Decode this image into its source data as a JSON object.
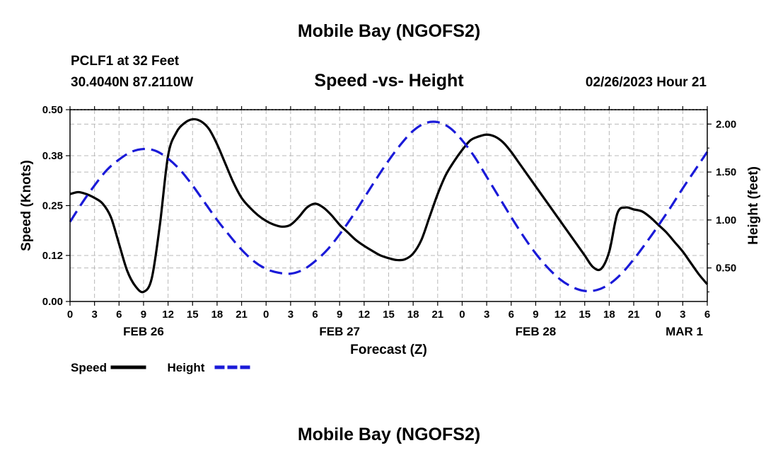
{
  "header": {
    "title": "Mobile Bay (NGOFS2)",
    "station": "PCLF1 at 32 Feet",
    "coords": "30.4040N  87.2110W",
    "chart_title": "Speed -vs- Height",
    "datetime": "02/26/2023 Hour 21"
  },
  "footer": {
    "title": "Mobile Bay (NGOFS2)"
  },
  "chart_data": {
    "type": "line",
    "title": "Speed -vs- Height",
    "xlabel": "Forecast (Z)",
    "ylabel": "Speed (Knots)",
    "y2label": "Height (feet)",
    "xlim": [
      0,
      78
    ],
    "ylim": [
      0,
      0.5
    ],
    "y2lim": [
      0.15,
      2.15
    ],
    "grid": true,
    "x_tick_values": [
      0,
      3,
      6,
      9,
      12,
      15,
      18,
      21,
      24,
      27,
      30,
      33,
      36,
      39,
      42,
      45,
      48,
      51,
      54,
      57,
      60,
      63,
      66,
      69,
      72,
      75,
      78
    ],
    "x_tick_labels": [
      "0",
      "3",
      "6",
      "9",
      "12",
      "15",
      "18",
      "21",
      "0",
      "3",
      "6",
      "9",
      "12",
      "15",
      "18",
      "21",
      "0",
      "3",
      "6",
      "9",
      "12",
      "15",
      "18",
      "21",
      "0",
      "3",
      "6"
    ],
    "y_ticks": [
      0.0,
      0.12,
      0.25,
      0.38,
      0.5
    ],
    "y_tick_labels": [
      "0.00",
      "0.12",
      "0.25",
      "0.38",
      "0.50"
    ],
    "y2_ticks": [
      0.5,
      1.0,
      1.5,
      2.0
    ],
    "y2_tick_labels": [
      "0.50",
      "1.00",
      "1.50",
      "2.00"
    ],
    "date_labels": [
      {
        "x": 9,
        "label": "FEB 26"
      },
      {
        "x": 33,
        "label": "FEB 27"
      },
      {
        "x": 57,
        "label": "FEB 28"
      },
      {
        "x": 78,
        "label": "MAR 1"
      }
    ],
    "series": [
      {
        "name": "Speed",
        "axis": "left",
        "color": "#000000",
        "dash": "solid",
        "x": [
          0,
          1,
          2,
          3,
          4,
          5,
          6,
          7,
          8,
          9,
          10,
          11,
          12,
          13,
          14,
          15,
          16,
          17,
          18,
          19,
          20,
          21,
          22,
          23,
          24,
          25,
          26,
          27,
          28,
          29,
          30,
          31,
          32,
          33,
          34,
          35,
          36,
          37,
          38,
          39,
          40,
          41,
          42,
          43,
          44,
          45,
          46,
          47,
          48,
          49,
          50,
          51,
          52,
          53,
          54,
          55,
          56,
          57,
          58,
          59,
          60,
          61,
          62,
          63,
          64,
          65,
          66,
          67,
          68,
          69,
          70,
          71,
          72,
          73,
          74,
          75,
          76,
          77,
          78
        ],
        "values": [
          0.28,
          0.285,
          0.28,
          0.27,
          0.255,
          0.22,
          0.15,
          0.08,
          0.04,
          0.025,
          0.06,
          0.2,
          0.38,
          0.44,
          0.465,
          0.475,
          0.47,
          0.45,
          0.41,
          0.36,
          0.31,
          0.27,
          0.245,
          0.225,
          0.21,
          0.2,
          0.195,
          0.2,
          0.22,
          0.245,
          0.255,
          0.245,
          0.225,
          0.2,
          0.18,
          0.16,
          0.145,
          0.132,
          0.12,
          0.113,
          0.108,
          0.11,
          0.125,
          0.16,
          0.22,
          0.28,
          0.33,
          0.365,
          0.395,
          0.42,
          0.43,
          0.435,
          0.43,
          0.415,
          0.39,
          0.36,
          0.33,
          0.3,
          0.27,
          0.24,
          0.21,
          0.18,
          0.15,
          0.12,
          0.09,
          0.085,
          0.13,
          0.23,
          0.245,
          0.24,
          0.235,
          0.22,
          0.2,
          0.18,
          0.155,
          0.13,
          0.1,
          0.07,
          0.045
        ]
      },
      {
        "name": "Height",
        "axis": "right",
        "color": "#1a1ad8",
        "dash": "dashed",
        "x": [
          0,
          1.5,
          3,
          4.5,
          6,
          7.5,
          9,
          10.5,
          12,
          13.5,
          15,
          16.5,
          18,
          19.5,
          21,
          22.5,
          24,
          25.5,
          27,
          28.5,
          30,
          31.5,
          33,
          34.5,
          36,
          37.5,
          39,
          40.5,
          42,
          43.5,
          45,
          46.5,
          48,
          49.5,
          51,
          52.5,
          54,
          55.5,
          57,
          58.5,
          60,
          61.5,
          63,
          64.5,
          66,
          67.5,
          69,
          70.5,
          72,
          73.5,
          75,
          76.5,
          78
        ],
        "values": [
          0.98,
          1.18,
          1.36,
          1.52,
          1.63,
          1.71,
          1.74,
          1.72,
          1.64,
          1.52,
          1.36,
          1.18,
          1.0,
          0.84,
          0.69,
          0.57,
          0.49,
          0.45,
          0.44,
          0.48,
          0.57,
          0.69,
          0.85,
          1.03,
          1.23,
          1.43,
          1.62,
          1.79,
          1.93,
          2.01,
          2.02,
          1.96,
          1.83,
          1.66,
          1.45,
          1.24,
          1.03,
          0.83,
          0.65,
          0.5,
          0.38,
          0.3,
          0.26,
          0.27,
          0.33,
          0.44,
          0.59,
          0.76,
          0.94,
          1.13,
          1.33,
          1.52,
          1.71
        ]
      }
    ]
  },
  "legend": {
    "items": [
      {
        "label": "Speed",
        "color": "#000000"
      },
      {
        "label": "Height",
        "color": "#1a1ad8"
      }
    ]
  }
}
